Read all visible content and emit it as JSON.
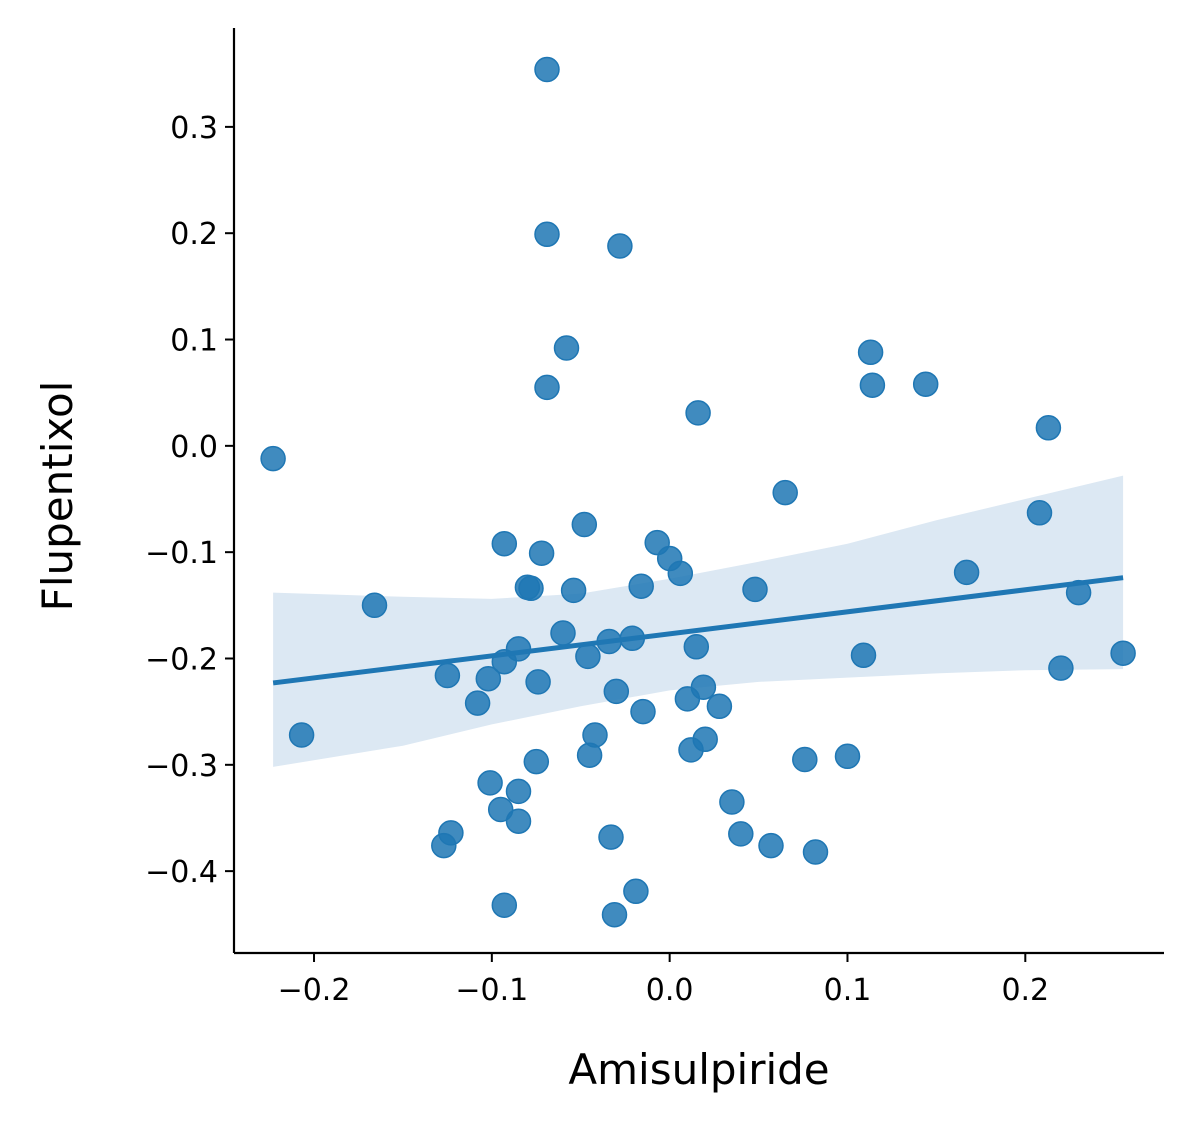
{
  "chart_data": {
    "type": "scatter",
    "xlabel": "Amisulpiride",
    "ylabel": "Flupentixol",
    "xlim": [
      -0.245,
      0.278
    ],
    "ylim": [
      -0.477,
      0.393
    ],
    "xticks": [
      -0.2,
      -0.1,
      0.0,
      0.1,
      0.2
    ],
    "yticks": [
      -0.4,
      -0.3,
      -0.2,
      -0.1,
      0.0,
      0.1,
      0.2,
      0.3
    ],
    "xtick_labels": [
      "−0.2",
      "−0.1",
      "0.0",
      "0.1",
      "0.2"
    ],
    "ytick_labels": [
      "−0.4",
      "−0.3",
      "−0.2",
      "−0.1",
      "0.0",
      "0.1",
      "0.2",
      "0.3"
    ],
    "grid": false,
    "legend": "none",
    "colors": {
      "points": "#1f77b4",
      "line": "#1f77b4",
      "band": "#dce8f3"
    },
    "points": [
      {
        "x": -0.069,
        "y": 0.354
      },
      {
        "x": -0.069,
        "y": 0.199
      },
      {
        "x": -0.028,
        "y": 0.188
      },
      {
        "x": -0.058,
        "y": 0.092
      },
      {
        "x": -0.069,
        "y": 0.055
      },
      {
        "x": 0.113,
        "y": 0.088
      },
      {
        "x": 0.114,
        "y": 0.057
      },
      {
        "x": 0.144,
        "y": 0.058
      },
      {
        "x": 0.016,
        "y": 0.031
      },
      {
        "x": 0.213,
        "y": 0.017
      },
      {
        "x": -0.223,
        "y": -0.012
      },
      {
        "x": 0.065,
        "y": -0.044
      },
      {
        "x": 0.208,
        "y": -0.063
      },
      {
        "x": -0.048,
        "y": -0.074
      },
      {
        "x": -0.093,
        "y": -0.092
      },
      {
        "x": -0.007,
        "y": -0.091
      },
      {
        "x": -0.072,
        "y": -0.101
      },
      {
        "x": 0.0,
        "y": -0.106
      },
      {
        "x": 0.006,
        "y": -0.12
      },
      {
        "x": 0.167,
        "y": -0.119
      },
      {
        "x": -0.08,
        "y": -0.133
      },
      {
        "x": -0.078,
        "y": -0.134
      },
      {
        "x": -0.016,
        "y": -0.132
      },
      {
        "x": 0.048,
        "y": -0.135
      },
      {
        "x": -0.054,
        "y": -0.136
      },
      {
        "x": 0.23,
        "y": -0.138
      },
      {
        "x": -0.166,
        "y": -0.15
      },
      {
        "x": -0.06,
        "y": -0.176
      },
      {
        "x": -0.034,
        "y": -0.184
      },
      {
        "x": -0.021,
        "y": -0.181
      },
      {
        "x": 0.015,
        "y": -0.189
      },
      {
        "x": -0.085,
        "y": -0.191
      },
      {
        "x": -0.046,
        "y": -0.198
      },
      {
        "x": -0.093,
        "y": -0.203
      },
      {
        "x": 0.109,
        "y": -0.197
      },
      {
        "x": 0.255,
        "y": -0.195
      },
      {
        "x": 0.22,
        "y": -0.209
      },
      {
        "x": -0.125,
        "y": -0.216
      },
      {
        "x": -0.102,
        "y": -0.219
      },
      {
        "x": -0.074,
        "y": -0.222
      },
      {
        "x": 0.019,
        "y": -0.227
      },
      {
        "x": -0.03,
        "y": -0.231
      },
      {
        "x": -0.108,
        "y": -0.242
      },
      {
        "x": 0.01,
        "y": -0.238
      },
      {
        "x": 0.028,
        "y": -0.245
      },
      {
        "x": -0.015,
        "y": -0.25
      },
      {
        "x": -0.207,
        "y": -0.272
      },
      {
        "x": -0.042,
        "y": -0.272
      },
      {
        "x": 0.02,
        "y": -0.276
      },
      {
        "x": 0.012,
        "y": -0.286
      },
      {
        "x": -0.045,
        "y": -0.291
      },
      {
        "x": 0.1,
        "y": -0.292
      },
      {
        "x": 0.076,
        "y": -0.295
      },
      {
        "x": -0.075,
        "y": -0.297
      },
      {
        "x": -0.101,
        "y": -0.317
      },
      {
        "x": -0.085,
        "y": -0.325
      },
      {
        "x": 0.035,
        "y": -0.335
      },
      {
        "x": -0.095,
        "y": -0.342
      },
      {
        "x": -0.085,
        "y": -0.353
      },
      {
        "x": -0.123,
        "y": -0.364
      },
      {
        "x": 0.04,
        "y": -0.365
      },
      {
        "x": -0.033,
        "y": -0.368
      },
      {
        "x": -0.127,
        "y": -0.376
      },
      {
        "x": 0.057,
        "y": -0.376
      },
      {
        "x": 0.082,
        "y": -0.382
      },
      {
        "x": -0.019,
        "y": -0.419
      },
      {
        "x": -0.093,
        "y": -0.432
      },
      {
        "x": -0.031,
        "y": -0.441
      }
    ],
    "regression_line": {
      "x": [
        -0.223,
        0.255
      ],
      "y": [
        -0.223,
        -0.124
      ]
    },
    "confidence_band": {
      "x": [
        -0.223,
        -0.15,
        -0.1,
        -0.05,
        0.0,
        0.05,
        0.1,
        0.15,
        0.2,
        0.255
      ],
      "upper": [
        -0.138,
        -0.142,
        -0.144,
        -0.139,
        -0.125,
        -0.109,
        -0.092,
        -0.07,
        -0.05,
        -0.028
      ],
      "lower": [
        -0.302,
        -0.282,
        -0.262,
        -0.245,
        -0.23,
        -0.222,
        -0.218,
        -0.214,
        -0.211,
        -0.21
      ]
    }
  }
}
